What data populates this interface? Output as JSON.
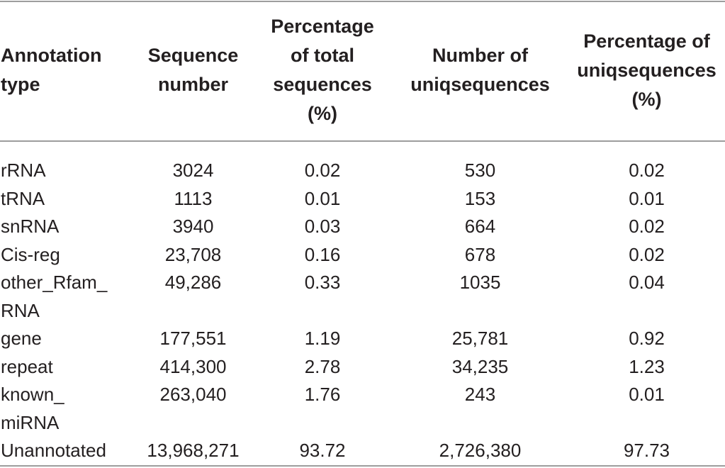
{
  "table": {
    "headers": [
      [
        "Annotation",
        "type"
      ],
      [
        "Sequence",
        "number"
      ],
      [
        "Percentage",
        "of total",
        "sequences",
        "(%)"
      ],
      [
        "Number of",
        "uniqsequences"
      ],
      [
        "Percentage of",
        "uniqsequences",
        "(%)"
      ]
    ],
    "rows": [
      {
        "type": [
          "rRNA"
        ],
        "sequence_number": "3024",
        "pct_total": "0.02",
        "uniq_number": "530",
        "pct_uniq": "0.02"
      },
      {
        "type": [
          "tRNA"
        ],
        "sequence_number": "1113",
        "pct_total": "0.01",
        "uniq_number": "153",
        "pct_uniq": "0.01"
      },
      {
        "type": [
          "snRNA"
        ],
        "sequence_number": "3940",
        "pct_total": "0.03",
        "uniq_number": "664",
        "pct_uniq": "0.02"
      },
      {
        "type": [
          "Cis-reg"
        ],
        "sequence_number": "23,708",
        "pct_total": "0.16",
        "uniq_number": "678",
        "pct_uniq": "0.02"
      },
      {
        "type": [
          "other_Rfam_",
          "RNA"
        ],
        "sequence_number": "49,286",
        "pct_total": "0.33",
        "uniq_number": "1035",
        "pct_uniq": "0.04"
      },
      {
        "type": [
          "gene"
        ],
        "sequence_number": "177,551",
        "pct_total": "1.19",
        "uniq_number": "25,781",
        "pct_uniq": "0.92"
      },
      {
        "type": [
          "repeat"
        ],
        "sequence_number": "414,300",
        "pct_total": "2.78",
        "uniq_number": "34,235",
        "pct_uniq": "1.23"
      },
      {
        "type": [
          "known_",
          "miRNA"
        ],
        "sequence_number": "263,040",
        "pct_total": "1.76",
        "uniq_number": "243",
        "pct_uniq": "0.01"
      },
      {
        "type": [
          "Unannotated"
        ],
        "sequence_number": "13,968,271",
        "pct_total": "93.72",
        "uniq_number": "2,726,380",
        "pct_uniq": "97.73"
      }
    ]
  }
}
